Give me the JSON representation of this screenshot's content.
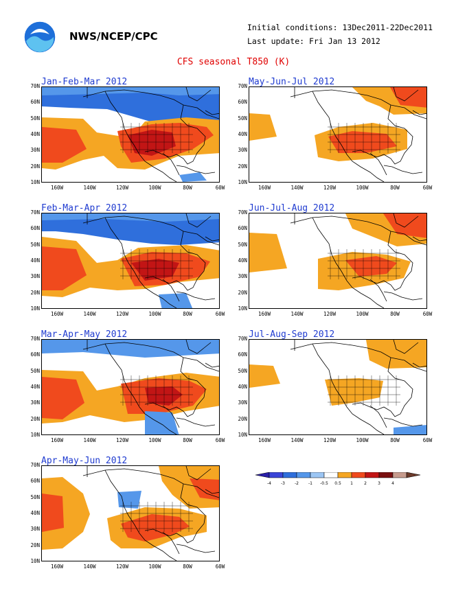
{
  "header": {
    "agency": "NWS/NCEP/CPC",
    "initial_conditions": "Initial conditions: 13Dec2011-22Dec2011",
    "last_update": "Last update: Fri Jan 13 2012",
    "title": "CFS seasonal T850 (K)"
  },
  "axes": {
    "lat_labels": [
      "70N",
      "60N",
      "50N",
      "40N",
      "30N",
      "20N",
      "10N"
    ],
    "lon_labels": [
      "160W",
      "140W",
      "120W",
      "100W",
      "80W",
      "60W"
    ]
  },
  "colorbar": {
    "labels": [
      "-4",
      "-3",
      "-2",
      "-1",
      "-0.5",
      "0.5",
      "1",
      "2",
      "3",
      "4"
    ],
    "colors": [
      "#2a1fa8",
      "#3a45d8",
      "#2f6fdc",
      "#5597ea",
      "#9cc6f4",
      "#ffffff",
      "#f5a623",
      "#f04a1d",
      "#c21515",
      "#7a1010",
      "#c79c8e",
      "#6b3a2a"
    ]
  },
  "panels": [
    {
      "title": "Jan-Feb-Mar 2012"
    },
    {
      "title": "May-Jun-Jul 2012"
    },
    {
      "title": "Feb-Mar-Apr 2012"
    },
    {
      "title": "Jun-Jul-Aug 2012"
    },
    {
      "title": "Mar-Apr-May 2012"
    },
    {
      "title": "Jul-Aug-Sep 2012"
    },
    {
      "title": "Apr-May-Jun 2012"
    }
  ]
}
